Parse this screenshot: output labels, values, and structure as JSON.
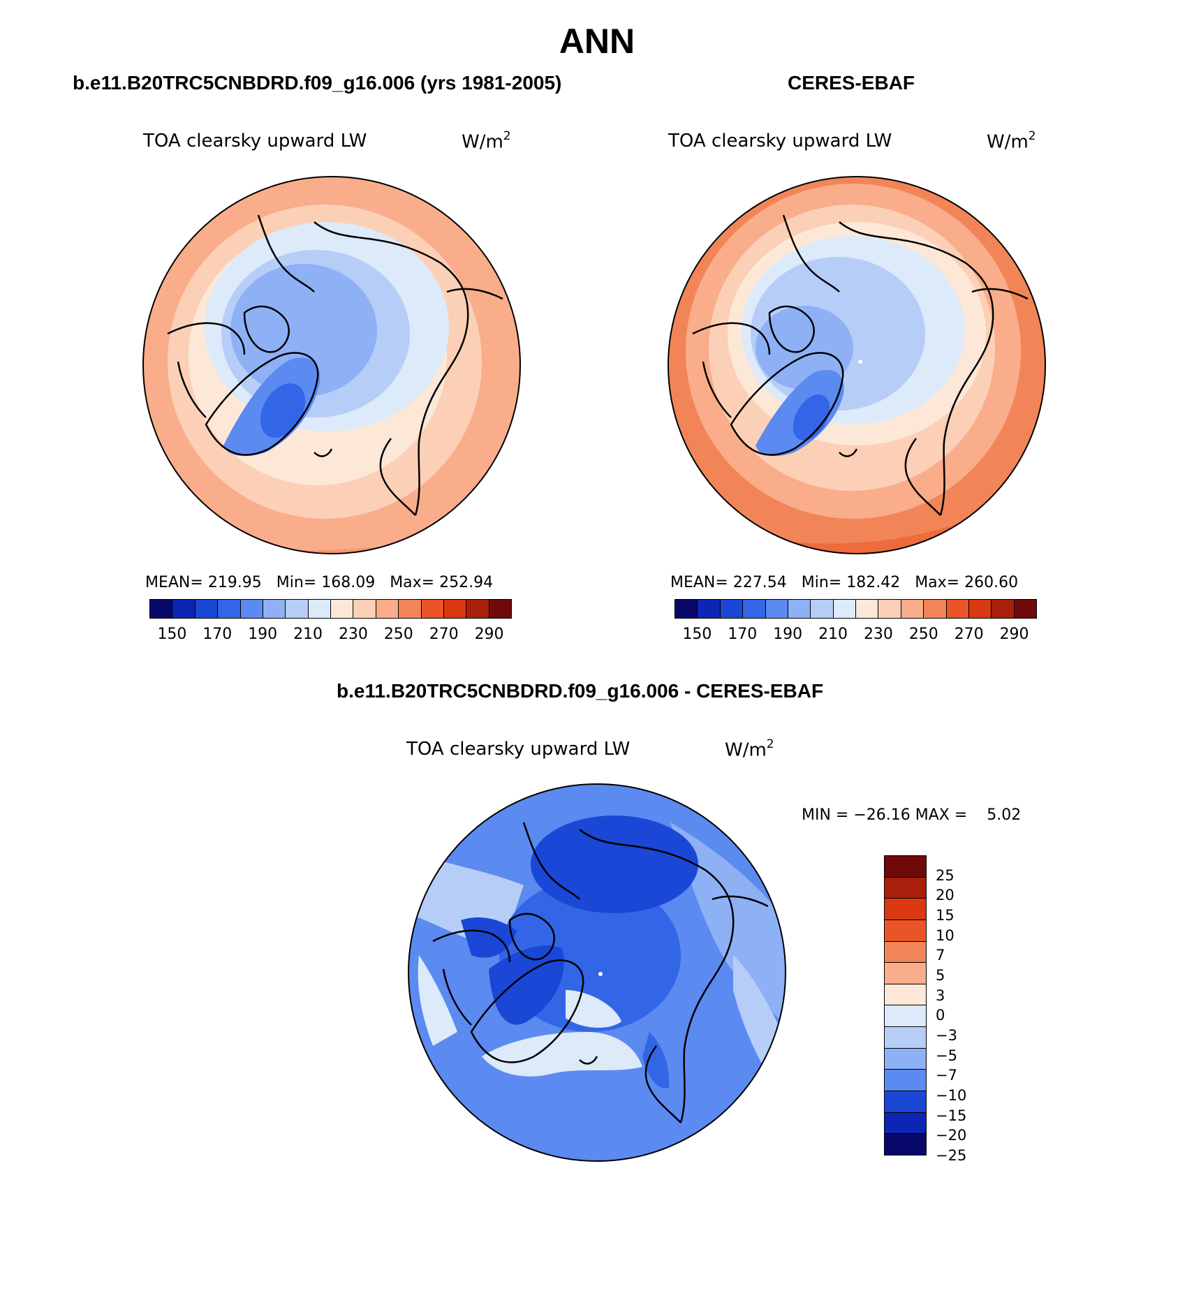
{
  "title": "ANN",
  "colors": {
    "abs_scale": [
      "#08086b",
      "#0d25b4",
      "#1a47d6",
      "#3366e6",
      "#5b8af0",
      "#8eb0f5",
      "#b6cdf8",
      "#dceaf9",
      "#fde8d8",
      "#fcd0b6",
      "#f9ad8b",
      "#f28558",
      "#ea5528",
      "#d93810",
      "#a8200b",
      "#700a0a"
    ],
    "diff_scale": [
      "#700a0a",
      "#a8200b",
      "#d93810",
      "#ea5528",
      "#f28558",
      "#f9ad8b",
      "#fde8d8",
      "#dceaf9",
      "#b6cdf8",
      "#8eb0f5",
      "#5b8af0",
      "#1a47d6",
      "#0d25b4",
      "#08086b"
    ]
  },
  "panels": {
    "model": {
      "title": "b.e11.B20TRC5CNBDRD.f09_g16.006 (yrs 1981-2005)",
      "variable": "TOA clearsky upward LW",
      "units": "W/m",
      "units_sup": "2",
      "stats": "MEAN= 219.95   Min= 168.09   Max= 252.94",
      "ticks": [
        "150",
        "170",
        "190",
        "210",
        "230",
        "250",
        "270",
        "290"
      ]
    },
    "obs": {
      "title": "CERES-EBAF",
      "variable": "TOA clearsky upward LW",
      "units": "W/m",
      "units_sup": "2",
      "stats": "MEAN= 227.54   Min= 182.42   Max= 260.60",
      "ticks": [
        "150",
        "170",
        "190",
        "210",
        "230",
        "250",
        "270",
        "290"
      ]
    },
    "diff": {
      "title": "b.e11.B20TRC5CNBDRD.f09_g16.006 - CERES-EBAF",
      "variable": "TOA clearsky upward LW",
      "units": "W/m",
      "units_sup": "2",
      "stats": "MIN = −26.16 MAX =    5.02",
      "ticks": [
        "25",
        "20",
        "15",
        "10",
        "7",
        "5",
        "3",
        "0",
        "−3",
        "−5",
        "−7",
        "−10",
        "−15",
        "−20",
        "−25"
      ]
    }
  }
}
